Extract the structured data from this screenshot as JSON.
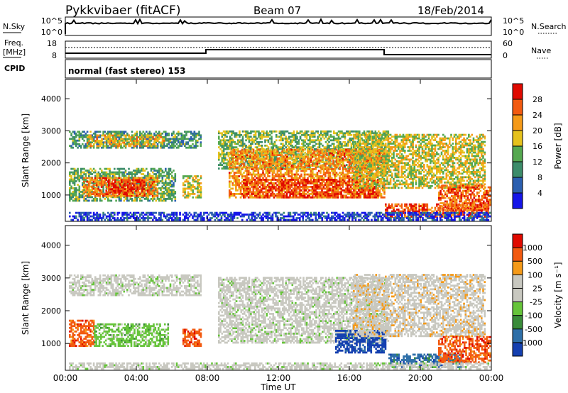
{
  "header": {
    "station": "Pykkvibaer (fitACF)",
    "beam": "Beam 07",
    "date": "18/Feb/2014"
  },
  "top_panels": {
    "nsky": {
      "label": "N.Sky",
      "ticks": [
        "10^5",
        "10^0"
      ]
    },
    "nsearch": {
      "label": "N.Search",
      "ticks": [
        "10^5",
        "10^0"
      ]
    },
    "freq": {
      "label_line1": "Freq.",
      "label_line2": "[MHz]",
      "ticks": [
        "18",
        "8"
      ]
    },
    "nave": {
      "label": "Nave",
      "ticks": [
        "60",
        "0"
      ]
    },
    "cpid": {
      "label": "CPID",
      "mode": "normal (fast stereo) 153"
    }
  },
  "chart_data": [
    {
      "type": "heatmap",
      "title": "",
      "xlabel": "Time UT",
      "ylabel": "Slant Range [km]",
      "x_ticks": [
        "00:00",
        "04:00",
        "08:00",
        "12:00",
        "16:00",
        "20:00",
        "00:00"
      ],
      "xlim": [
        0,
        24
      ],
      "y_ticks": [
        "1000",
        "2000",
        "3000",
        "4000"
      ],
      "ylim": [
        180,
        4600
      ],
      "colorbar": {
        "label": "Power [dB]",
        "ticks": [
          "4",
          "8",
          "12",
          "16",
          "20",
          "24",
          "28"
        ],
        "range": [
          0,
          32
        ],
        "colors": [
          "#1515e8",
          "#2b5fb0",
          "#3c8c6a",
          "#55a850",
          "#e6c21c",
          "#f59a18",
          "#f25a10",
          "#e00a00"
        ]
      },
      "regions": [
        {
          "t0": 0.2,
          "t1": 7.6,
          "r0": 2450,
          "r1": 3000,
          "level": 0.35
        },
        {
          "t0": 1.2,
          "t1": 5.6,
          "r0": 2500,
          "r1": 2850,
          "level": 0.62
        },
        {
          "t0": 0.2,
          "t1": 6.2,
          "r0": 800,
          "r1": 1800,
          "level": 0.4
        },
        {
          "t0": 1.0,
          "t1": 5.2,
          "r0": 950,
          "r1": 1550,
          "level": 0.75
        },
        {
          "t0": 2.4,
          "t1": 4.4,
          "r0": 1050,
          "r1": 1450,
          "level": 0.9
        },
        {
          "t0": 6.6,
          "t1": 7.6,
          "r0": 900,
          "r1": 1600,
          "level": 0.55
        },
        {
          "t0": 8.6,
          "t1": 18.2,
          "r0": 1800,
          "r1": 3000,
          "level": 0.45
        },
        {
          "t0": 9.2,
          "t1": 18.0,
          "r0": 900,
          "r1": 2400,
          "level": 0.72
        },
        {
          "t0": 10.0,
          "t1": 17.6,
          "r0": 900,
          "r1": 1500,
          "level": 0.88
        },
        {
          "t0": 16.2,
          "t1": 23.6,
          "r0": 1200,
          "r1": 2900,
          "level": 0.55
        },
        {
          "t0": 18.0,
          "t1": 23.8,
          "r0": 300,
          "r1": 700,
          "level": 0.85
        },
        {
          "t0": 21.0,
          "t1": 23.9,
          "r0": 500,
          "r1": 1300,
          "level": 0.8
        },
        {
          "t0": 0.2,
          "t1": 23.9,
          "r0": 200,
          "r1": 450,
          "level": 0.12
        }
      ]
    },
    {
      "type": "heatmap",
      "title": "",
      "xlabel": "Time UT",
      "ylabel": "Slant Range [km]",
      "x_ticks": [
        "00:00",
        "04:00",
        "08:00",
        "12:00",
        "16:00",
        "20:00",
        "00:00"
      ],
      "xlim": [
        0,
        24
      ],
      "y_ticks": [
        "1000",
        "2000",
        "3000",
        "4000"
      ],
      "ylim": [
        180,
        4600
      ],
      "colorbar": {
        "label": "Velocity [m s⁻¹]",
        "ticks": [
          "1000",
          "500",
          "100",
          "25",
          "-25",
          "-100",
          "-500",
          "-1000"
        ],
        "range": [
          -1200,
          1200
        ],
        "colors": [
          "#1540b0",
          "#2e6fa8",
          "#3a8c3a",
          "#66c43a",
          "#c8c8c0",
          "#c8c8c0",
          "#f59a18",
          "#f25a10",
          "#e00a00"
        ]
      },
      "regions": [
        {
          "t0": 0.2,
          "t1": 7.6,
          "r0": 2450,
          "r1": 3100,
          "level": 4
        },
        {
          "t0": 0.2,
          "t1": 1.6,
          "r0": 900,
          "r1": 1700,
          "level": 7
        },
        {
          "t0": 1.6,
          "t1": 5.8,
          "r0": 900,
          "r1": 1600,
          "level": 3
        },
        {
          "t0": 6.6,
          "t1": 7.6,
          "r0": 900,
          "r1": 1400,
          "level": 7
        },
        {
          "t0": 8.6,
          "t1": 18.2,
          "r0": 1000,
          "r1": 3000,
          "level": 4
        },
        {
          "t0": 15.2,
          "t1": 18.0,
          "r0": 700,
          "r1": 1400,
          "level": 0
        },
        {
          "t0": 16.2,
          "t1": 23.6,
          "r0": 1200,
          "r1": 3100,
          "level": 5
        },
        {
          "t0": 18.2,
          "t1": 22.4,
          "r0": 250,
          "r1": 650,
          "level": 1
        },
        {
          "t0": 21.0,
          "t1": 23.9,
          "r0": 400,
          "r1": 1200,
          "level": 7
        },
        {
          "t0": 0.2,
          "t1": 23.9,
          "r0": 200,
          "r1": 400,
          "level": 4
        }
      ]
    }
  ]
}
